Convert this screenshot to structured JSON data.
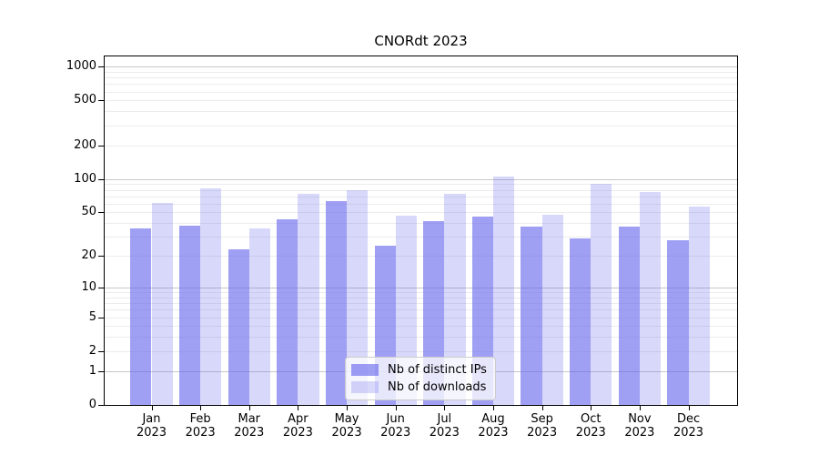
{
  "chart_data": {
    "type": "bar",
    "title": "CNORdt 2023",
    "y_scale": "log1p",
    "ylim": [
      0,
      1200
    ],
    "grid": true,
    "legend_position": "lower center",
    "y_ticks": [
      1000,
      500,
      200,
      100,
      50,
      20,
      10,
      5,
      2,
      1,
      0
    ],
    "categories": [
      {
        "month": "Jan",
        "year": "2023"
      },
      {
        "month": "Feb",
        "year": "2023"
      },
      {
        "month": "Mar",
        "year": "2023"
      },
      {
        "month": "Apr",
        "year": "2023"
      },
      {
        "month": "May",
        "year": "2023"
      },
      {
        "month": "Jun",
        "year": "2023"
      },
      {
        "month": "Jul",
        "year": "2023"
      },
      {
        "month": "Aug",
        "year": "2023"
      },
      {
        "month": "Sep",
        "year": "2023"
      },
      {
        "month": "Oct",
        "year": "2023"
      },
      {
        "month": "Nov",
        "year": "2023"
      },
      {
        "month": "Dec",
        "year": "2023"
      }
    ],
    "series": [
      {
        "name": "Nb of distinct IPs",
        "color": "rgba(100,100,235,0.62)",
        "values": [
          36,
          38,
          23,
          43,
          63,
          25,
          42,
          46,
          37,
          29,
          37,
          28
        ]
      },
      {
        "name": "Nb of downloads",
        "color": "rgba(100,100,235,0.25)",
        "values": [
          61,
          82,
          36,
          74,
          80,
          47,
          73,
          106,
          48,
          90,
          76,
          56
        ]
      }
    ],
    "grid_major_color": "#c8c8c8",
    "grid_minor_color": "#ececec",
    "axis_color": "#000000"
  }
}
